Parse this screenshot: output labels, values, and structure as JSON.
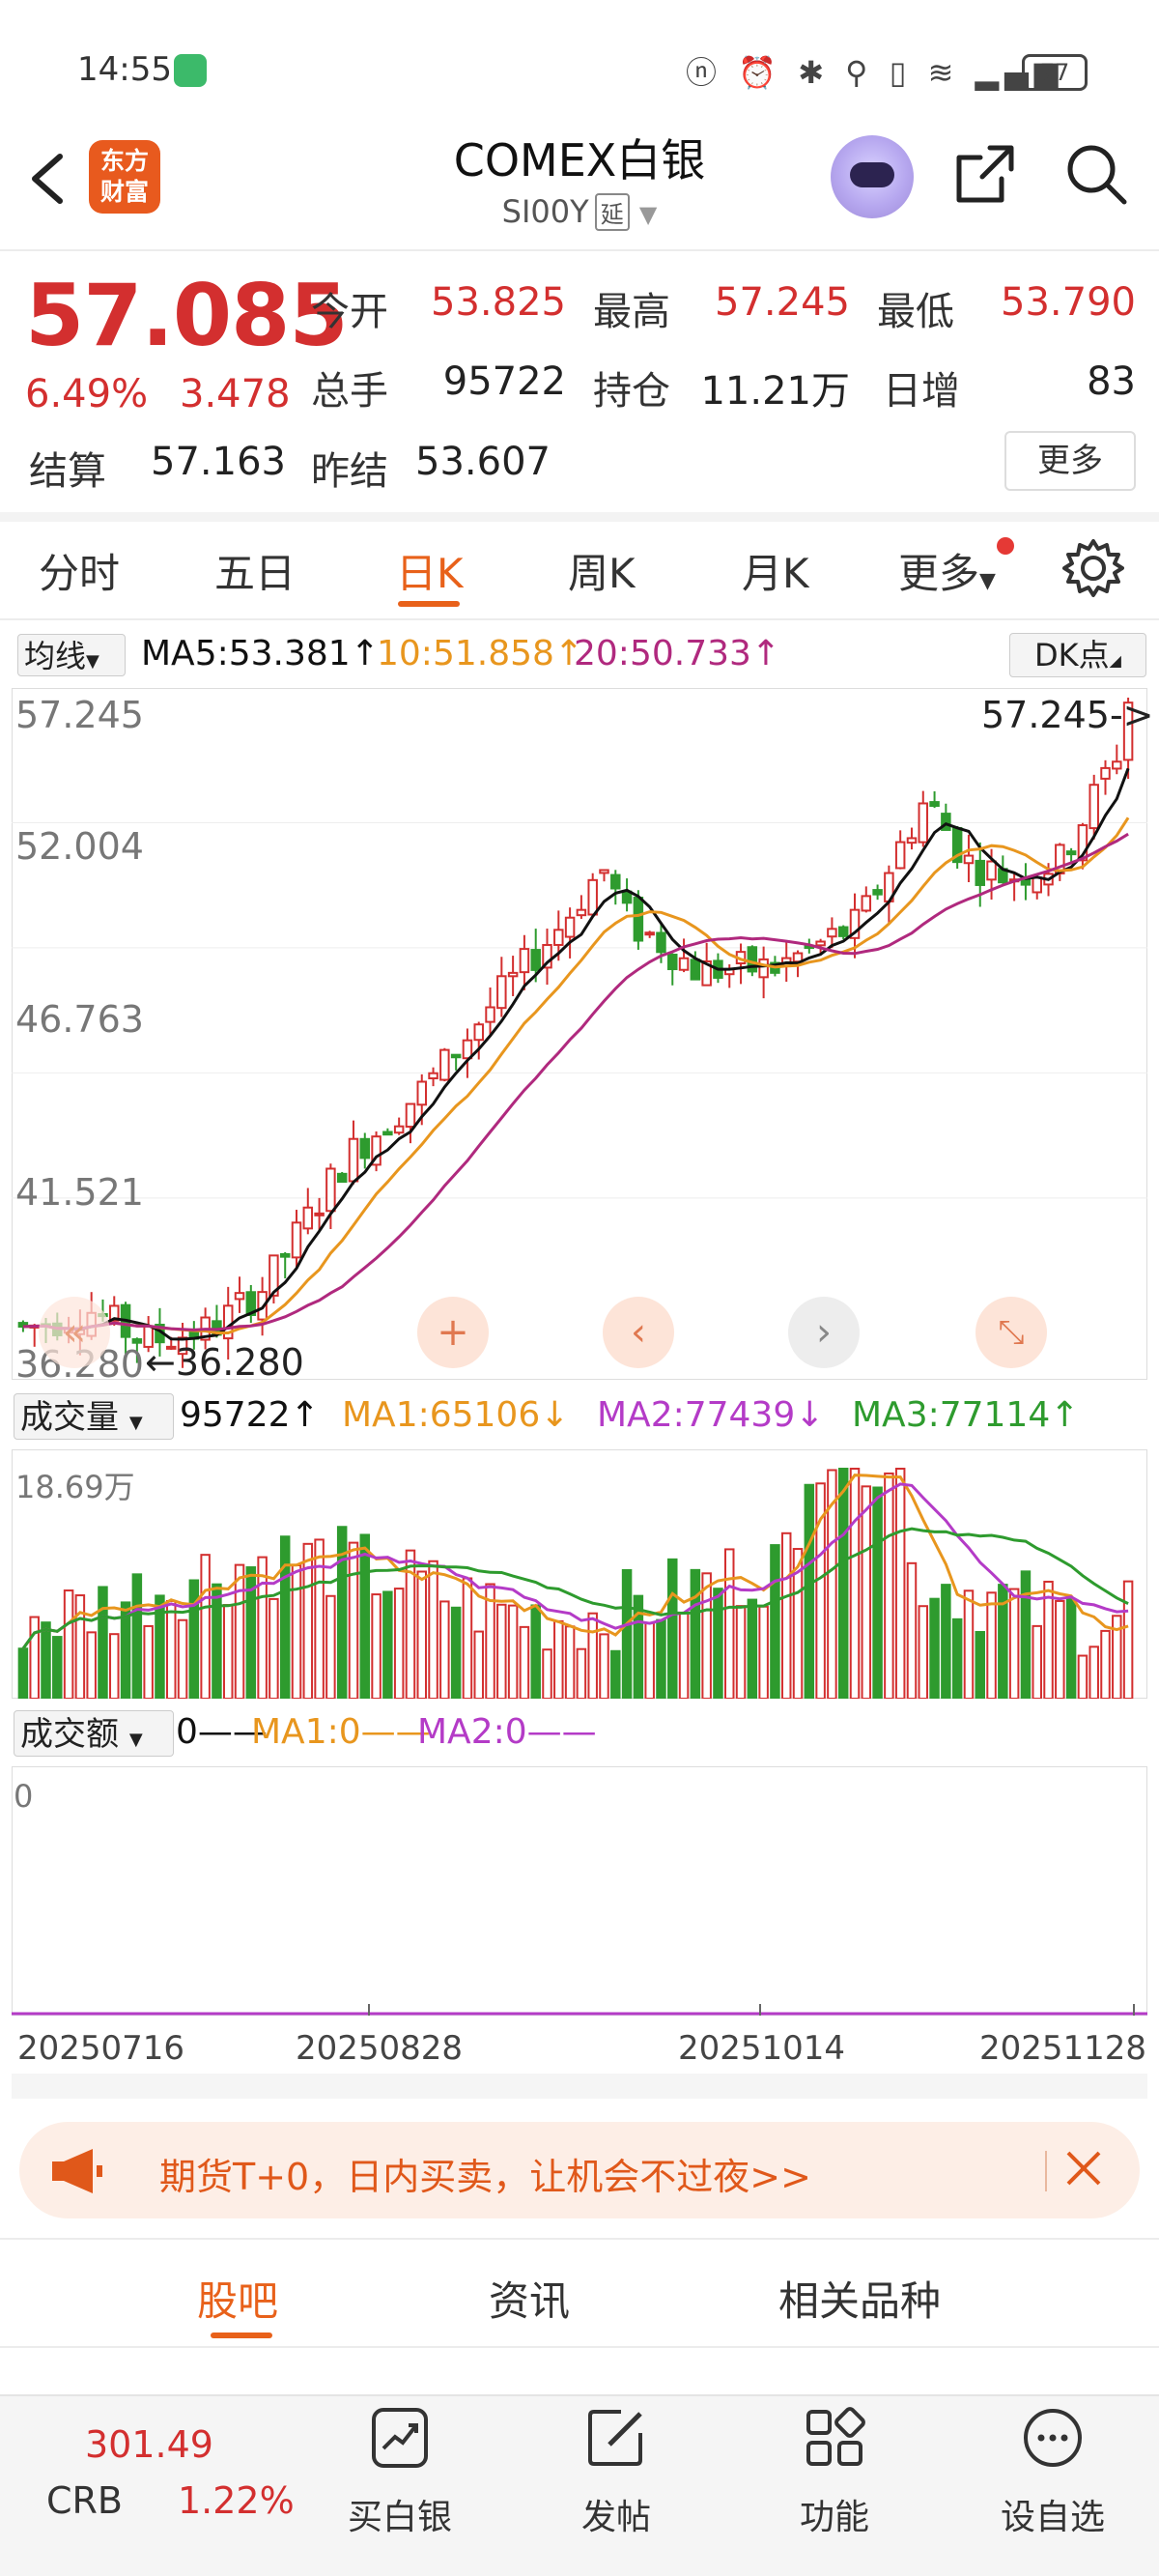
{
  "status": {
    "time": "14:55",
    "icons": "ⓝ ⏰ ✱ ⚲ ▯ ≋ ▂▄▆",
    "battery": "77"
  },
  "header": {
    "logo": "东方\n财富",
    "title": "COMEX白银",
    "code": "SI00Y",
    "badge": "延"
  },
  "quote": {
    "price": "57.085",
    "pct": "6.49%",
    "change": "3.478",
    "open_label": "今开",
    "open": "53.825",
    "high_label": "最高",
    "high": "57.245",
    "low_label": "最低",
    "low": "53.790",
    "vol_label": "总手",
    "vol": "95722",
    "oi_label": "持仓",
    "oi": "11.21万",
    "daily_inc_label": "日增",
    "daily_inc": "83",
    "settle_label": "结算",
    "settle": "57.163",
    "prev_settle_label": "昨结",
    "prev_settle": "53.607",
    "more": "更多"
  },
  "tabs": [
    "分时",
    "五日",
    "日K",
    "周K",
    "月K",
    "更多"
  ],
  "ma_legend": {
    "select": "均线",
    "ma5": "MA5:53.381",
    "ma10": "10:51.858",
    "ma20": "20:50.733",
    "dk": "DK点"
  },
  "colors": {
    "up": "#d32f2f",
    "down": "#2e9b2e",
    "ma5": "#111111",
    "ma10": "#e8961e",
    "ma20": "#b0297e",
    "accent": "#e8611a"
  },
  "chart_data": [
    {
      "type": "candlestick",
      "y_ticks": [
        "57.245",
        "52.004",
        "46.763",
        "41.521",
        "36.280"
      ],
      "ylim": [
        36.28,
        57.245
      ],
      "max_label": "57.245->",
      "min_label": "←36.280",
      "ma_series": [
        "MA5",
        "MA10",
        "MA20"
      ]
    },
    {
      "type": "bar",
      "title": "成交量",
      "y_top_label": "18.69万",
      "legend": {
        "value": "95722",
        "ma1": "MA1:65106",
        "ma2": "MA2:77439",
        "ma3": "MA3:77114"
      }
    },
    {
      "type": "bar",
      "title": "成交额",
      "y_top_label": "0",
      "legend": {
        "value": "0——",
        "ma1": "MA1:0——",
        "ma2": "MA2:0——"
      }
    }
  ],
  "x_ticks": [
    "20250716",
    "20250828",
    "20251014",
    "20251128"
  ],
  "promo": {
    "text": "期货T+0，日内买卖，让机会不过夜>>"
  },
  "bottom_tabs": [
    "股吧",
    "资讯",
    "相关品种"
  ],
  "bottom_bar": {
    "crb_value": "301.49",
    "crb_name": "CRB",
    "crb_pct": "1.22%",
    "items": [
      "买白银",
      "发帖",
      "功能",
      "设自选"
    ]
  }
}
